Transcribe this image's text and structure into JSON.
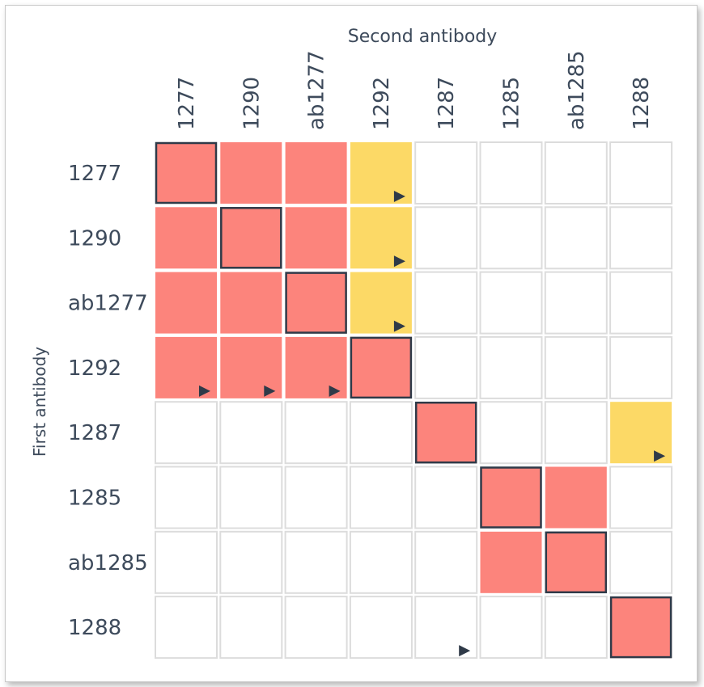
{
  "chart_data": {
    "type": "heatmap",
    "title": "",
    "xlabel": "Second antibody",
    "ylabel": "First antibody",
    "x_categories": [
      "1277",
      "1290",
      "ab1277",
      "1292",
      "1287",
      "1285",
      "ab1285",
      "1288"
    ],
    "y_categories": [
      "1277",
      "1290",
      "ab1277",
      "1292",
      "1287",
      "1285",
      "ab1285",
      "1288"
    ],
    "legend": {
      "blocked": "#fc847c",
      "partial": "#fcd966",
      "none": "#ffffff"
    },
    "matrix": [
      [
        "blocked",
        "blocked",
        "blocked",
        "partial",
        "none",
        "none",
        "none",
        "none"
      ],
      [
        "blocked",
        "blocked",
        "blocked",
        "partial",
        "none",
        "none",
        "none",
        "none"
      ],
      [
        "blocked",
        "blocked",
        "blocked",
        "partial",
        "none",
        "none",
        "none",
        "none"
      ],
      [
        "blocked",
        "blocked",
        "blocked",
        "blocked",
        "none",
        "none",
        "none",
        "none"
      ],
      [
        "none",
        "none",
        "none",
        "none",
        "blocked",
        "none",
        "none",
        "partial"
      ],
      [
        "none",
        "none",
        "none",
        "none",
        "none",
        "blocked",
        "blocked",
        "none"
      ],
      [
        "none",
        "none",
        "none",
        "none",
        "none",
        "blocked",
        "blocked",
        "none"
      ],
      [
        "none",
        "none",
        "none",
        "none",
        "none",
        "none",
        "none",
        "blocked"
      ]
    ],
    "marker_cells": [
      [
        0,
        3
      ],
      [
        1,
        3
      ],
      [
        2,
        3
      ],
      [
        3,
        0
      ],
      [
        3,
        1
      ],
      [
        3,
        2
      ],
      [
        4,
        7
      ],
      [
        7,
        4
      ]
    ],
    "grid": true
  }
}
